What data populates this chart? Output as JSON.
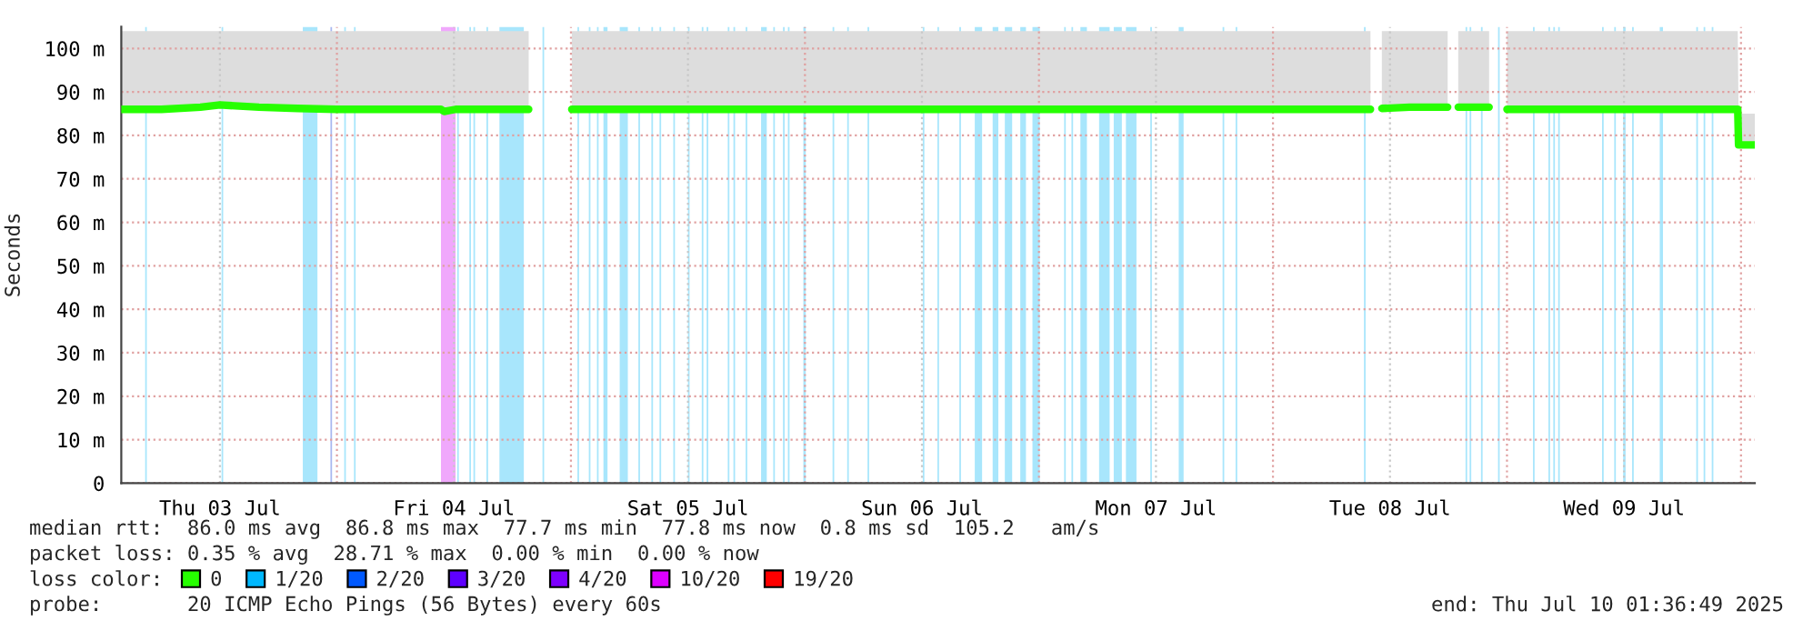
{
  "chart_data": {
    "type": "line",
    "ylabel": "Seconds",
    "legend_title": "loss color:",
    "legend": "bottom",
    "grid": true,
    "marker": "none",
    "line_style": "solid",
    "xlim": [
      "2025-07-03T01:53",
      "2025-07-10T01:25"
    ],
    "xticks": [
      {
        "value": "2025-07-03T12:00",
        "label": "Thu 03 Jul"
      },
      {
        "value": "2025-07-04T00:00",
        "label": null
      },
      {
        "value": "2025-07-04T12:00",
        "label": "Fri 04 Jul"
      },
      {
        "value": "2025-07-05T00:00",
        "label": null
      },
      {
        "value": "2025-07-05T12:00",
        "label": "Sat 05 Jul"
      },
      {
        "value": "2025-07-06T00:00",
        "label": null
      },
      {
        "value": "2025-07-06T12:00",
        "label": "Sun 06 Jul"
      },
      {
        "value": "2025-07-07T00:00",
        "label": null
      },
      {
        "value": "2025-07-07T12:00",
        "label": "Mon 07 Jul"
      },
      {
        "value": "2025-07-08T00:00",
        "label": null
      },
      {
        "value": "2025-07-08T12:00",
        "label": "Tue 08 Jul"
      },
      {
        "value": "2025-07-09T00:00",
        "label": null
      },
      {
        "value": "2025-07-09T12:00",
        "label": "Wed 09 Jul"
      },
      {
        "value": "2025-07-10T00:00",
        "label": null
      }
    ],
    "ylim": [
      0,
      105
    ],
    "yticks": [
      {
        "value": 0,
        "label": "0"
      },
      {
        "value": 10,
        "label": "10 m"
      },
      {
        "value": 20,
        "label": "20 m"
      },
      {
        "value": 30,
        "label": "30 m"
      },
      {
        "value": 40,
        "label": "40 m"
      },
      {
        "value": 50,
        "label": "50 m"
      },
      {
        "value": 60,
        "label": "60 m"
      },
      {
        "value": 70,
        "label": "70 m"
      },
      {
        "value": 80,
        "label": "80 m"
      },
      {
        "value": 90,
        "label": "90 m"
      },
      {
        "value": 100,
        "label": "100 m"
      }
    ],
    "series": [
      {
        "name": "0",
        "color": "#26ff00",
        "x": [
          "2025-07-03T01:53",
          "2025-07-03T06:00",
          "2025-07-03T10:00",
          "2025-07-03T12:00",
          "2025-07-03T16:00",
          "2025-07-03T20:00",
          "2025-07-04T00:00",
          "2025-07-04T04:00",
          "2025-07-04T08:00",
          "2025-07-04T10:40",
          "2025-07-04T11:00",
          "2025-07-04T12:10",
          "2025-07-04T16:00",
          "2025-07-04T19:40",
          "2025-07-04T19:45",
          "2025-07-04T20:35",
          "2025-07-04T21:15",
          "2025-07-04T21:20",
          "2025-07-05T00:05",
          "2025-07-05T04:00",
          "2025-07-05T08:00",
          "2025-07-05T12:00",
          "2025-07-05T16:00",
          "2025-07-05T20:00",
          "2025-07-06T00:00",
          "2025-07-06T04:00",
          "2025-07-06T08:00",
          "2025-07-06T12:00",
          "2025-07-06T16:00",
          "2025-07-06T20:00",
          "2025-07-07T00:00",
          "2025-07-07T04:00",
          "2025-07-07T08:00",
          "2025-07-07T12:00",
          "2025-07-07T16:00",
          "2025-07-07T20:00",
          "2025-07-08T00:00",
          "2025-07-08T04:00",
          "2025-07-08T08:00",
          "2025-07-08T10:00",
          "2025-07-08T10:05",
          "2025-07-08T11:10",
          "2025-07-08T14:00",
          "2025-07-08T17:55",
          "2025-07-08T18:00",
          "2025-07-08T19:00",
          "2025-07-08T22:10",
          "2025-07-08T22:15",
          "2025-07-08T22:55",
          "2025-07-08T23:25",
          "2025-07-08T23:30",
          "2025-07-09T00:00",
          "2025-07-09T04:00",
          "2025-07-09T08:00",
          "2025-07-09T12:00",
          "2025-07-09T16:00",
          "2025-07-09T20:00",
          "2025-07-09T23:40",
          "2025-07-09T23:45",
          "2025-07-10T01:25"
        ],
        "values": [
          86,
          86,
          86.5,
          87,
          86.5,
          86.2,
          86,
          86,
          86,
          86,
          85.5,
          86,
          86,
          86,
          null,
          null,
          null,
          null,
          86,
          86,
          86,
          86,
          86,
          86,
          86,
          86,
          86,
          86,
          86,
          86,
          86,
          86,
          86,
          86,
          86,
          86,
          86,
          86,
          86,
          86,
          null,
          86.2,
          86.5,
          86.5,
          null,
          86.5,
          86.5,
          null,
          null,
          null,
          null,
          86,
          86,
          86,
          86,
          86,
          86,
          86,
          77.8,
          77.8
        ],
        "lower": [
          85.5,
          85.5,
          86,
          86.5,
          86,
          85.7,
          85.5,
          85.5,
          85.5,
          85.5,
          85,
          85.5,
          85.5,
          85.5,
          null,
          null,
          null,
          null,
          85.5,
          85.5,
          85.5,
          85.5,
          85.5,
          85.5,
          85.5,
          85.5,
          85.5,
          85.5,
          85.5,
          85.5,
          85.5,
          85.5,
          85.5,
          85.5,
          85.5,
          85.5,
          85.5,
          85.5,
          85.5,
          85.5,
          null,
          85.7,
          86,
          86,
          null,
          86,
          86,
          null,
          null,
          null,
          null,
          85.5,
          85.5,
          85.5,
          85.5,
          85.5,
          85.5,
          85.5,
          77.5,
          77.5
        ],
        "upper": [
          104,
          104,
          104,
          104,
          104,
          104,
          104,
          104,
          104,
          104,
          104,
          104,
          104,
          104,
          null,
          null,
          null,
          null,
          104,
          104,
          104,
          104,
          104,
          104,
          104,
          104,
          104,
          104,
          104,
          104,
          104,
          104,
          104,
          104,
          104,
          104,
          104,
          104,
          104,
          104,
          null,
          104,
          104,
          104,
          null,
          104,
          104,
          null,
          null,
          null,
          null,
          104,
          104,
          104,
          104,
          104,
          104,
          104,
          85,
          85
        ]
      },
      {
        "name": "1/20",
        "color": "#00b8ff"
      },
      {
        "name": "2/20",
        "color": "#0059ff"
      },
      {
        "name": "3/20",
        "color": "#5e00ff"
      },
      {
        "name": "4/20",
        "color": "#7e00ff"
      },
      {
        "name": "10/20",
        "color": "#dd00ff"
      },
      {
        "name": "19/20",
        "color": "#ff0000"
      }
    ],
    "bands": [
      {
        "axis": "x",
        "from": "2025-07-03T04:20",
        "to": "2025-07-03T04:30",
        "color": "#a8e6fc"
      },
      {
        "axis": "x",
        "from": "2025-07-03T12:10",
        "to": "2025-07-03T12:20",
        "color": "#a8e6fc"
      },
      {
        "axis": "x",
        "from": "2025-07-03T20:30",
        "to": "2025-07-03T22:00",
        "color": "#a8e6fc"
      },
      {
        "axis": "x",
        "from": "2025-07-03T23:20",
        "to": "2025-07-03T23:30",
        "color": "#a8b8f0"
      },
      {
        "axis": "x",
        "from": "2025-07-04T00:45",
        "to": "2025-07-04T00:55",
        "color": "#a8e6fc"
      },
      {
        "axis": "x",
        "from": "2025-07-04T01:45",
        "to": "2025-07-04T01:55",
        "color": "#a8e6fc"
      },
      {
        "axis": "x",
        "from": "2025-07-04T10:40",
        "to": "2025-07-04T12:10",
        "color": "#f0a8fc"
      },
      {
        "axis": "x",
        "from": "2025-07-04T12:20",
        "to": "2025-07-04T12:30",
        "color": "#a8e6fc"
      },
      {
        "axis": "x",
        "from": "2025-07-04T13:35",
        "to": "2025-07-04T13:45",
        "color": "#a8e6fc"
      },
      {
        "axis": "x",
        "from": "2025-07-04T14:00",
        "to": "2025-07-04T14:10",
        "color": "#a8e6fc"
      },
      {
        "axis": "x",
        "from": "2025-07-04T15:20",
        "to": "2025-07-04T15:30",
        "color": "#a8e6fc"
      },
      {
        "axis": "x",
        "from": "2025-07-04T16:40",
        "to": "2025-07-04T19:10",
        "color": "#a8e6fc"
      },
      {
        "axis": "x",
        "from": "2025-07-04T21:05",
        "to": "2025-07-04T21:15",
        "color": "#a8e6fc"
      },
      {
        "axis": "x",
        "from": "2025-07-05T00:40",
        "to": "2025-07-05T00:50",
        "color": "#a8e6fc"
      },
      {
        "axis": "x",
        "from": "2025-07-05T01:50",
        "to": "2025-07-05T02:00",
        "color": "#a8e6fc"
      },
      {
        "axis": "x",
        "from": "2025-07-05T02:40",
        "to": "2025-07-05T02:50",
        "color": "#a8e6fc"
      },
      {
        "axis": "x",
        "from": "2025-07-05T03:20",
        "to": "2025-07-05T03:45",
        "color": "#a8e6fc"
      },
      {
        "axis": "x",
        "from": "2025-07-05T05:00",
        "to": "2025-07-05T05:50",
        "color": "#a8e6fc"
      },
      {
        "axis": "x",
        "from": "2025-07-05T06:55",
        "to": "2025-07-05T07:05",
        "color": "#a8e6fc"
      },
      {
        "axis": "x",
        "from": "2025-07-05T08:15",
        "to": "2025-07-05T08:25",
        "color": "#a8e6fc"
      },
      {
        "axis": "x",
        "from": "2025-07-05T09:05",
        "to": "2025-07-05T09:15",
        "color": "#a8e6fc"
      },
      {
        "axis": "x",
        "from": "2025-07-05T10:30",
        "to": "2025-07-05T10:40",
        "color": "#a8e6fc"
      },
      {
        "axis": "x",
        "from": "2025-07-05T12:00",
        "to": "2025-07-05T12:10",
        "color": "#a8e6fc"
      },
      {
        "axis": "x",
        "from": "2025-07-05T13:25",
        "to": "2025-07-05T13:35",
        "color": "#a8e6fc"
      },
      {
        "axis": "x",
        "from": "2025-07-05T13:55",
        "to": "2025-07-05T14:05",
        "color": "#a8e6fc"
      },
      {
        "axis": "x",
        "from": "2025-07-05T16:05",
        "to": "2025-07-05T16:15",
        "color": "#a8e6fc"
      },
      {
        "axis": "x",
        "from": "2025-07-05T16:40",
        "to": "2025-07-05T16:50",
        "color": "#a8e6fc"
      },
      {
        "axis": "x",
        "from": "2025-07-05T17:55",
        "to": "2025-07-05T18:05",
        "color": "#a8e6fc"
      },
      {
        "axis": "x",
        "from": "2025-07-05T19:30",
        "to": "2025-07-05T20:05",
        "color": "#a8e6fc"
      },
      {
        "axis": "x",
        "from": "2025-07-05T20:45",
        "to": "2025-07-05T20:55",
        "color": "#a8e6fc"
      },
      {
        "axis": "x",
        "from": "2025-07-05T21:45",
        "to": "2025-07-05T21:55",
        "color": "#a8e6fc"
      },
      {
        "axis": "x",
        "from": "2025-07-05T22:15",
        "to": "2025-07-05T22:25",
        "color": "#a8e6fc"
      },
      {
        "axis": "x",
        "from": "2025-07-05T23:50",
        "to": "2025-07-06T00:05",
        "color": "#a8e6fc"
      },
      {
        "axis": "x",
        "from": "2025-07-06T02:50",
        "to": "2025-07-06T03:00",
        "color": "#a8e6fc"
      },
      {
        "axis": "x",
        "from": "2025-07-06T04:20",
        "to": "2025-07-06T04:30",
        "color": "#a8e6fc"
      },
      {
        "axis": "x",
        "from": "2025-07-06T06:25",
        "to": "2025-07-06T06:35",
        "color": "#a8e6fc"
      },
      {
        "axis": "x",
        "from": "2025-07-06T12:05",
        "to": "2025-07-06T12:15",
        "color": "#a8e6fc"
      },
      {
        "axis": "x",
        "from": "2025-07-06T13:35",
        "to": "2025-07-06T13:45",
        "color": "#a8e6fc"
      },
      {
        "axis": "x",
        "from": "2025-07-06T15:50",
        "to": "2025-07-06T16:00",
        "color": "#a8e6fc"
      },
      {
        "axis": "x",
        "from": "2025-07-06T17:25",
        "to": "2025-07-06T18:10",
        "color": "#a8e6fc"
      },
      {
        "axis": "x",
        "from": "2025-07-06T19:15",
        "to": "2025-07-06T19:50",
        "color": "#a8e6fc"
      },
      {
        "axis": "x",
        "from": "2025-07-06T20:30",
        "to": "2025-07-06T21:15",
        "color": "#a8e6fc"
      },
      {
        "axis": "x",
        "from": "2025-07-06T22:05",
        "to": "2025-07-06T22:40",
        "color": "#a8e6fc"
      },
      {
        "axis": "x",
        "from": "2025-07-06T23:20",
        "to": "2025-07-07T00:05",
        "color": "#a8e6fc"
      },
      {
        "axis": "x",
        "from": "2025-07-07T02:35",
        "to": "2025-07-07T02:45",
        "color": "#a8e6fc"
      },
      {
        "axis": "x",
        "from": "2025-07-07T03:20",
        "to": "2025-07-07T03:30",
        "color": "#a8e6fc"
      },
      {
        "axis": "x",
        "from": "2025-07-07T04:15",
        "to": "2025-07-07T04:55",
        "color": "#a8e6fc"
      },
      {
        "axis": "x",
        "from": "2025-07-07T06:10",
        "to": "2025-07-07T07:15",
        "color": "#a8e6fc"
      },
      {
        "axis": "x",
        "from": "2025-07-07T07:40",
        "to": "2025-07-07T08:30",
        "color": "#a8e6fc"
      },
      {
        "axis": "x",
        "from": "2025-07-07T08:55",
        "to": "2025-07-07T10:00",
        "color": "#a8e6fc"
      },
      {
        "axis": "x",
        "from": "2025-07-07T11:25",
        "to": "2025-07-07T11:35",
        "color": "#a8e6fc"
      },
      {
        "axis": "x",
        "from": "2025-07-07T14:20",
        "to": "2025-07-07T14:50",
        "color": "#a8e6fc"
      },
      {
        "axis": "x",
        "from": "2025-07-07T18:50",
        "to": "2025-07-07T19:00",
        "color": "#a8e6fc"
      },
      {
        "axis": "x",
        "from": "2025-07-07T20:10",
        "to": "2025-07-07T20:20",
        "color": "#a8e6fc"
      },
      {
        "axis": "x",
        "from": "2025-07-08T09:20",
        "to": "2025-07-08T09:30",
        "color": "#a8e6fc"
      },
      {
        "axis": "x",
        "from": "2025-07-08T19:45",
        "to": "2025-07-08T19:55",
        "color": "#a8e6fc"
      },
      {
        "axis": "x",
        "from": "2025-07-08T20:10",
        "to": "2025-07-08T20:20",
        "color": "#a8e6fc"
      },
      {
        "axis": "x",
        "from": "2025-07-08T21:20",
        "to": "2025-07-08T21:30",
        "color": "#a8e6fc"
      },
      {
        "axis": "x",
        "from": "2025-07-08T23:05",
        "to": "2025-07-08T23:15",
        "color": "#a8e6fc"
      },
      {
        "axis": "x",
        "from": "2025-07-09T02:40",
        "to": "2025-07-09T02:50",
        "color": "#a8e6fc"
      },
      {
        "axis": "x",
        "from": "2025-07-09T04:15",
        "to": "2025-07-09T04:25",
        "color": "#a8e6fc"
      },
      {
        "axis": "x",
        "from": "2025-07-09T04:45",
        "to": "2025-07-09T04:55",
        "color": "#a8e6fc"
      },
      {
        "axis": "x",
        "from": "2025-07-09T05:15",
        "to": "2025-07-09T05:25",
        "color": "#a8e6fc"
      },
      {
        "axis": "x",
        "from": "2025-07-09T09:45",
        "to": "2025-07-09T09:55",
        "color": "#a8e6fc"
      },
      {
        "axis": "x",
        "from": "2025-07-09T11:00",
        "to": "2025-07-09T11:10",
        "color": "#a8e6fc"
      },
      {
        "axis": "x",
        "from": "2025-07-09T11:55",
        "to": "2025-07-09T12:10",
        "color": "#a8e6fc"
      },
      {
        "axis": "x",
        "from": "2025-07-09T12:50",
        "to": "2025-07-09T13:00",
        "color": "#a8e6fc"
      },
      {
        "axis": "x",
        "from": "2025-07-09T15:40",
        "to": "2025-07-09T16:00",
        "color": "#a8e6fc"
      },
      {
        "axis": "x",
        "from": "2025-07-09T19:25",
        "to": "2025-07-09T19:35",
        "color": "#a8e6fc"
      },
      {
        "axis": "x",
        "from": "2025-07-09T20:10",
        "to": "2025-07-09T20:20",
        "color": "#a8e6fc"
      },
      {
        "axis": "x",
        "from": "2025-07-09T21:00",
        "to": "2025-07-09T21:10",
        "color": "#a8e6fc"
      }
    ],
    "annotations": [
      "median rtt:  86.0 ms avg  86.8 ms max  77.7 ms min  77.8 ms now  0.8 ms sd  105.2   am/s",
      "packet loss: 0.35 % avg  28.71 % max  0.00 % min  0.00 % now",
      "probe:       20 ICMP Echo Pings (56 Bytes) every 60s",
      "end: Thu Jul 10 01:36:49 2025"
    ]
  }
}
